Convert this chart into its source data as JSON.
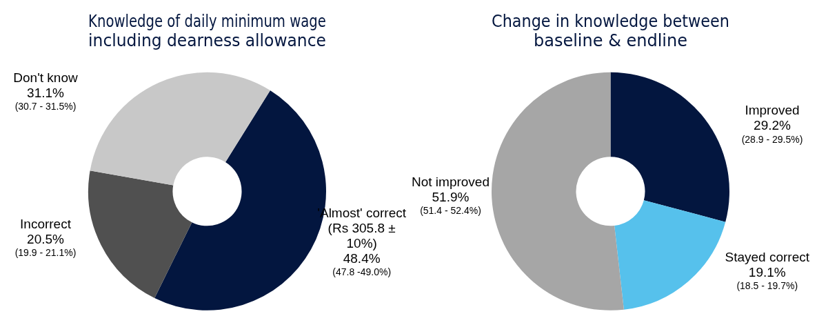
{
  "chart_data": [
    {
      "type": "donut",
      "title": "Knowledge of daily minimum wage including dearness allowance",
      "categories": [
        "'Almost' correct (Rs 305.8 ± 10%)",
        "Incorrect",
        "Don't know"
      ],
      "values": [
        48.4,
        20.5,
        31.1
      ],
      "colors": [
        "#03163f",
        "#505050",
        "#c8c8c8"
      ],
      "value_labels": [
        "48.4%",
        "20.5%",
        "31.1%"
      ],
      "annotations": [
        "(47.8 -49.0%)",
        "(19.9 - 21.1%)",
        "(30.7 - 31.5%)"
      ],
      "legend": false
    },
    {
      "type": "donut",
      "title": "Change in knowledge between baseline & endline",
      "categories": [
        "Improved",
        "Stayed correct",
        "Not improved"
      ],
      "values": [
        29.2,
        19.1,
        51.9
      ],
      "colors": [
        "#03163f",
        "#56c1ec",
        "#a6a6a6"
      ],
      "value_labels": [
        "29.2%",
        "19.1%",
        "51.9%"
      ],
      "annotations": [
        "(28.9 - 29.5%)",
        "(18.5 - 19.7%)",
        "(51.4 - 52.4%)"
      ],
      "legend": false
    }
  ]
}
